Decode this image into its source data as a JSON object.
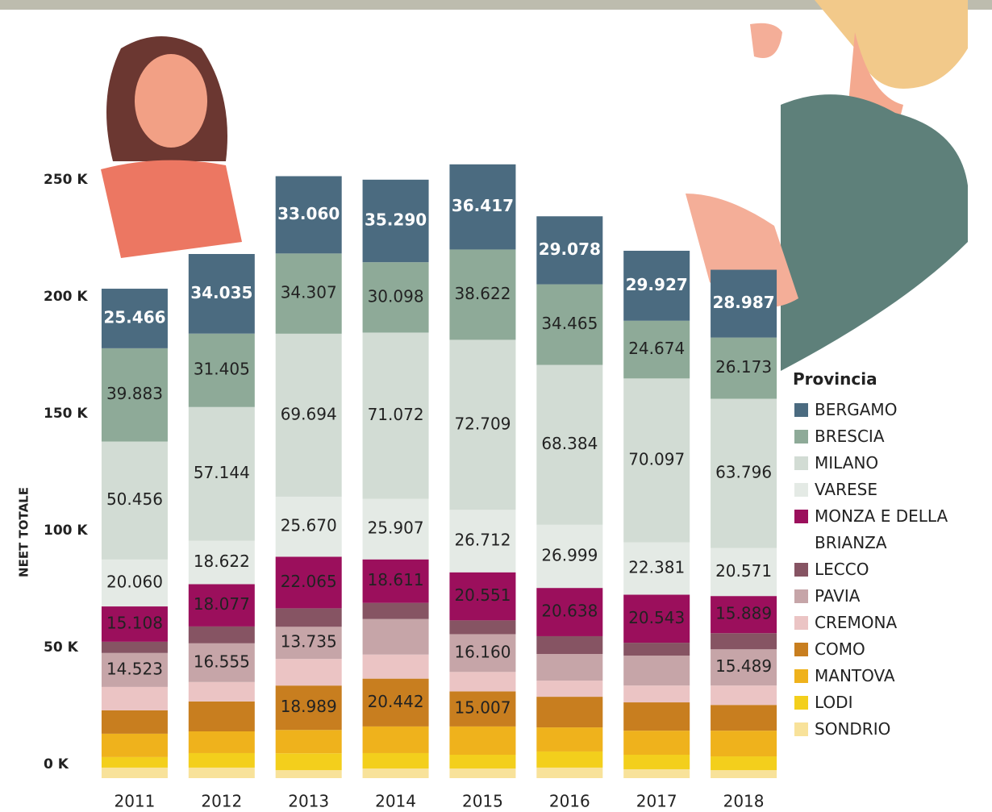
{
  "chart_data": {
    "type": "stacked-bar",
    "y_label": "NEET TOTALE",
    "legend_title": "Provincia",
    "categories": [
      "2011",
      "2012",
      "2013",
      "2014",
      "2015",
      "2016",
      "2017",
      "2018"
    ],
    "ylim": [
      0,
      270
    ],
    "yticks": [
      {
        "value": 0,
        "label": "0 K"
      },
      {
        "value": 50,
        "label": "50 K"
      },
      {
        "value": 100,
        "label": "100 K"
      },
      {
        "value": 150,
        "label": "150 K"
      },
      {
        "value": 200,
        "label": "200 K"
      },
      {
        "value": 250,
        "label": "250 K"
      }
    ],
    "series": [
      {
        "name": "BERGAMO",
        "color": "#4b6b80",
        "values": [
          25.466,
          34.035,
          33.06,
          35.29,
          36.417,
          29.078,
          29.927,
          28.987
        ],
        "value_labels": [
          "25.466",
          "34.035",
          "33.060",
          "35.290",
          "36.417",
          "29.078",
          "29.927",
          "28.987"
        ]
      },
      {
        "name": "BRESCIA",
        "color": "#8eaa98",
        "values": [
          39.883,
          31.405,
          34.307,
          30.098,
          38.622,
          34.465,
          24.674,
          26.173
        ],
        "value_labels": [
          "39.883",
          "31.405",
          "34.307",
          "30.098",
          "38.622",
          "34.465",
          "24.674",
          "26.173"
        ]
      },
      {
        "name": "MILANO",
        "color": "#d2dcd4",
        "values": [
          50.456,
          57.144,
          69.694,
          71.072,
          72.709,
          68.384,
          70.097,
          63.796
        ],
        "value_labels": [
          "50.456",
          "57.144",
          "69.694",
          "71.072",
          "72.709",
          "68.384",
          "70.097",
          "63.796"
        ]
      },
      {
        "name": "VARESE",
        "color": "#e4eae5",
        "values": [
          20.06,
          18.622,
          25.67,
          25.907,
          26.712,
          26.999,
          22.381,
          20.571
        ],
        "value_labels": [
          "20.060",
          "18.622",
          "25.670",
          "25.907",
          "26.712",
          "26.999",
          "22.381",
          "20.571"
        ]
      },
      {
        "name": "MONZA E DELLA BRIANZA",
        "color": "#9b0f5c",
        "values": [
          15.108,
          18.077,
          22.065,
          18.611,
          20.551,
          20.638,
          20.543,
          15.889
        ],
        "value_labels": [
          "15.108",
          "18.077",
          "22.065",
          "18.611",
          "20.551",
          "20.638",
          "20.543",
          "15.889"
        ]
      },
      {
        "name": "LECCO",
        "color": "#865463",
        "values": [
          4.8,
          7.2,
          7.9,
          6.9,
          5.9,
          7.6,
          5.5,
          6.9
        ],
        "value_labels": [
          null,
          null,
          null,
          null,
          null,
          null,
          null,
          null
        ]
      },
      {
        "name": "PAVIA",
        "color": "#c6a5a8",
        "values": [
          14.523,
          16.555,
          13.735,
          15.2,
          16.16,
          11.4,
          12.8,
          15.489
        ],
        "value_labels": [
          "14.523",
          "16.555",
          "13.735",
          null,
          "16.160",
          null,
          null,
          "15.489"
        ]
      },
      {
        "name": "CREMONA",
        "color": "#ebc4c4",
        "values": [
          10,
          8.3,
          11.4,
          10.3,
          8.3,
          6.9,
          7.2,
          8.3
        ],
        "value_labels": [
          null,
          null,
          null,
          null,
          null,
          null,
          null,
          null
        ]
      },
      {
        "name": "COMO",
        "color": "#c87e1f",
        "values": [
          10,
          12.8,
          18.989,
          20.442,
          15.007,
          13.1,
          12.1,
          11
        ],
        "value_labels": [
          null,
          null,
          "18.989",
          "20.442",
          "15.007",
          null,
          null,
          null
        ]
      },
      {
        "name": "MANTOVA",
        "color": "#efb21c",
        "values": [
          10,
          9.3,
          10,
          11.4,
          12.1,
          10.3,
          10.3,
          11
        ],
        "value_labels": [
          null,
          null,
          null,
          null,
          null,
          null,
          null,
          null
        ]
      },
      {
        "name": "LODI",
        "color": "#f3cf1c",
        "values": [
          4.5,
          6.2,
          7.2,
          6.6,
          5.9,
          6.9,
          6.2,
          5.9
        ],
        "value_labels": [
          null,
          null,
          null,
          null,
          null,
          null,
          null,
          null
        ]
      },
      {
        "name": "SONDRIO",
        "color": "#f8e29a",
        "values": [
          4.5,
          4.5,
          3.4,
          4.1,
          4.1,
          4.5,
          3.8,
          3.4
        ],
        "value_labels": [
          null,
          null,
          null,
          null,
          null,
          null,
          null,
          null
        ]
      }
    ]
  }
}
